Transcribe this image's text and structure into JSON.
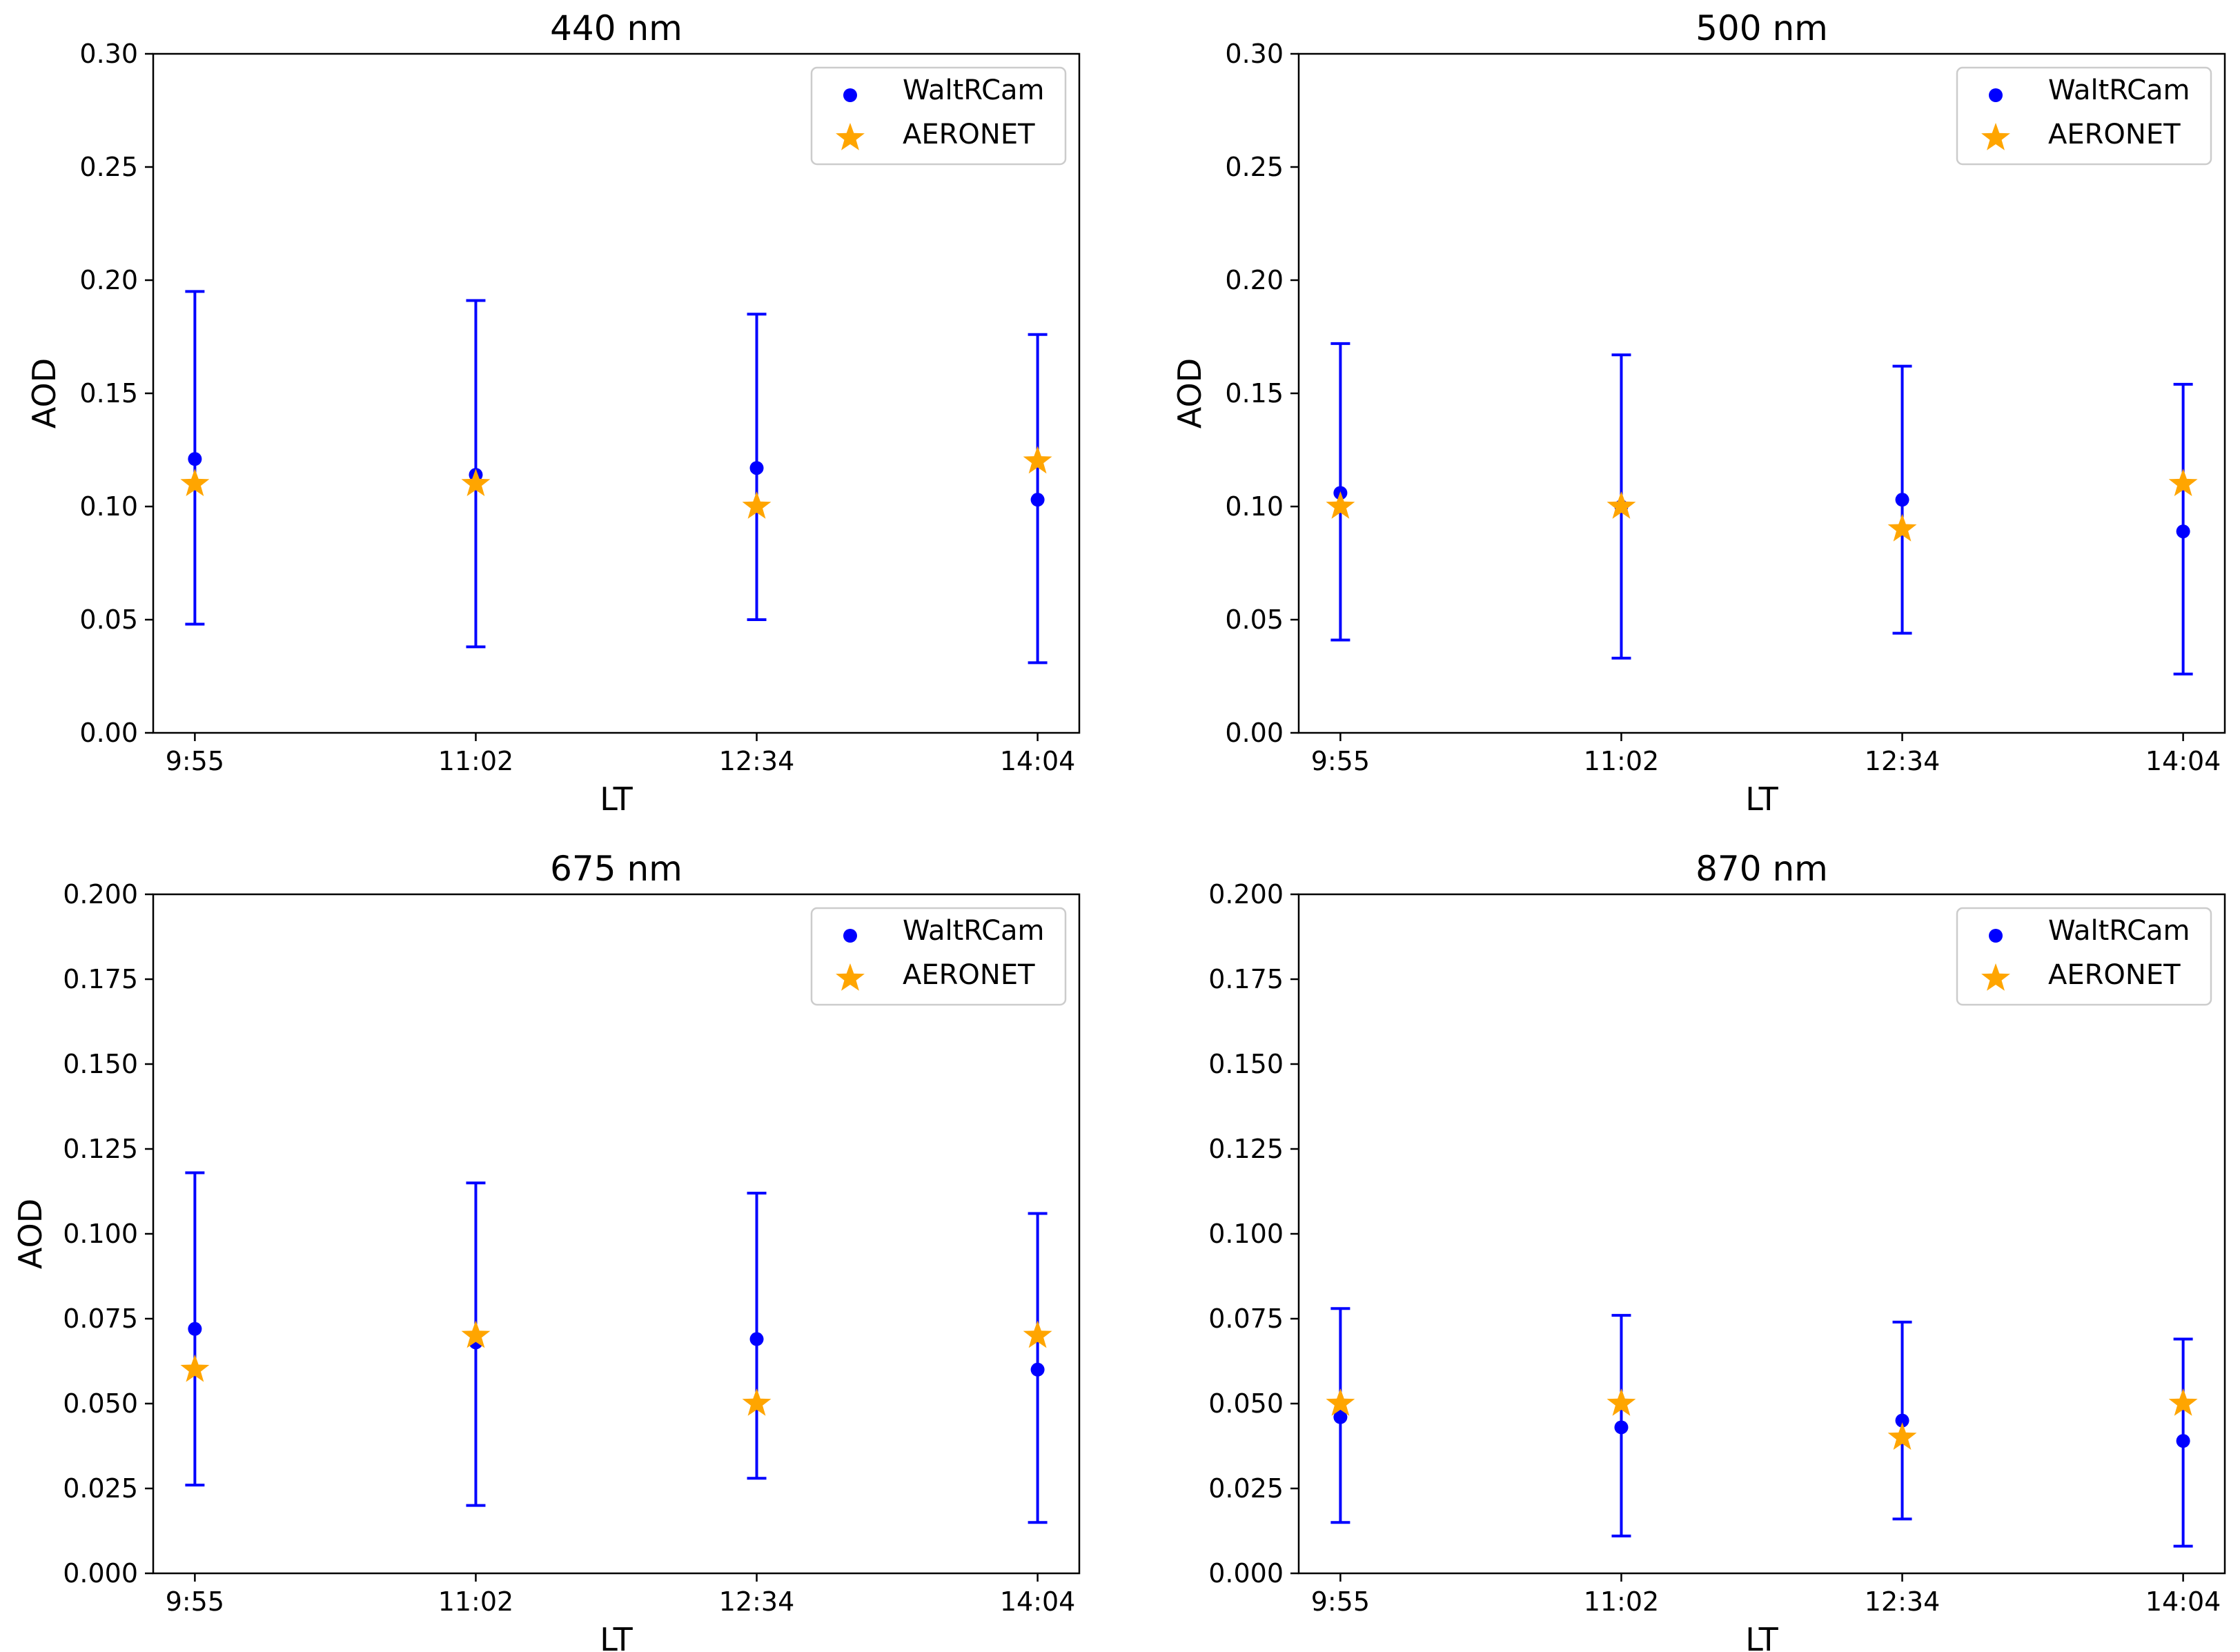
{
  "colors": {
    "waltrcam": "#0000ff",
    "aeronet": "#ffa500",
    "axis": "#000000",
    "legend_border": "#cccccc"
  },
  "chart_data": [
    {
      "type": "scatter",
      "title": "440 nm",
      "xlabel": "LT",
      "ylabel": "AOD",
      "categories": [
        "9:55",
        "11:02",
        "12:34",
        "14:04"
      ],
      "ylim": [
        0,
        0.3
      ],
      "yticks": [
        "0.00",
        "0.05",
        "0.10",
        "0.15",
        "0.20",
        "0.25",
        "0.30"
      ],
      "legend_position": "top-right",
      "series": [
        {
          "name": "WaltRCam",
          "marker": "circle",
          "values": [
            0.121,
            0.114,
            0.117,
            0.103
          ],
          "err_low": [
            0.048,
            0.038,
            0.05,
            0.031
          ],
          "err_high": [
            0.195,
            0.191,
            0.185,
            0.176
          ]
        },
        {
          "name": "AERONET",
          "marker": "star",
          "values": [
            0.11,
            0.11,
            0.1,
            0.12
          ]
        }
      ]
    },
    {
      "type": "scatter",
      "title": "500 nm",
      "xlabel": "LT",
      "ylabel": "AOD",
      "categories": [
        "9:55",
        "11:02",
        "12:34",
        "14:04"
      ],
      "ylim": [
        0,
        0.3
      ],
      "yticks": [
        "0.00",
        "0.05",
        "0.10",
        "0.15",
        "0.20",
        "0.25",
        "0.30"
      ],
      "legend_position": "top-right",
      "series": [
        {
          "name": "WaltRCam",
          "marker": "circle",
          "values": [
            0.106,
            0.1,
            0.103,
            0.089
          ],
          "err_low": [
            0.041,
            0.033,
            0.044,
            0.026
          ],
          "err_high": [
            0.172,
            0.167,
            0.162,
            0.154
          ]
        },
        {
          "name": "AERONET",
          "marker": "star",
          "values": [
            0.1,
            0.1,
            0.09,
            0.11
          ]
        }
      ]
    },
    {
      "type": "scatter",
      "title": "675 nm",
      "xlabel": "LT",
      "ylabel": "AOD",
      "categories": [
        "9:55",
        "11:02",
        "12:34",
        "14:04"
      ],
      "ylim": [
        0,
        0.2
      ],
      "yticks": [
        "0.000",
        "0.025",
        "0.050",
        "0.075",
        "0.100",
        "0.125",
        "0.150",
        "0.175",
        "0.200"
      ],
      "legend_position": "top-right",
      "series": [
        {
          "name": "WaltRCam",
          "marker": "circle",
          "values": [
            0.072,
            0.068,
            0.069,
            0.06
          ],
          "err_low": [
            0.026,
            0.02,
            0.028,
            0.015
          ],
          "err_high": [
            0.118,
            0.115,
            0.112,
            0.106
          ]
        },
        {
          "name": "AERONET",
          "marker": "star",
          "values": [
            0.06,
            0.07,
            0.05,
            0.07
          ]
        }
      ]
    },
    {
      "type": "scatter",
      "title": "870 nm",
      "xlabel": "LT",
      "ylabel": "",
      "categories": [
        "9:55",
        "11:02",
        "12:34",
        "14:04"
      ],
      "ylim": [
        0,
        0.2
      ],
      "yticks": [
        "0.000",
        "0.025",
        "0.050",
        "0.075",
        "0.100",
        "0.125",
        "0.150",
        "0.175",
        "0.200"
      ],
      "legend_position": "top-right",
      "series": [
        {
          "name": "WaltRCam",
          "marker": "circle",
          "values": [
            0.046,
            0.043,
            0.045,
            0.039
          ],
          "err_low": [
            0.015,
            0.011,
            0.016,
            0.008
          ],
          "err_high": [
            0.078,
            0.076,
            0.074,
            0.069
          ]
        },
        {
          "name": "AERONET",
          "marker": "star",
          "values": [
            0.05,
            0.05,
            0.04,
            0.05
          ]
        }
      ]
    }
  ]
}
